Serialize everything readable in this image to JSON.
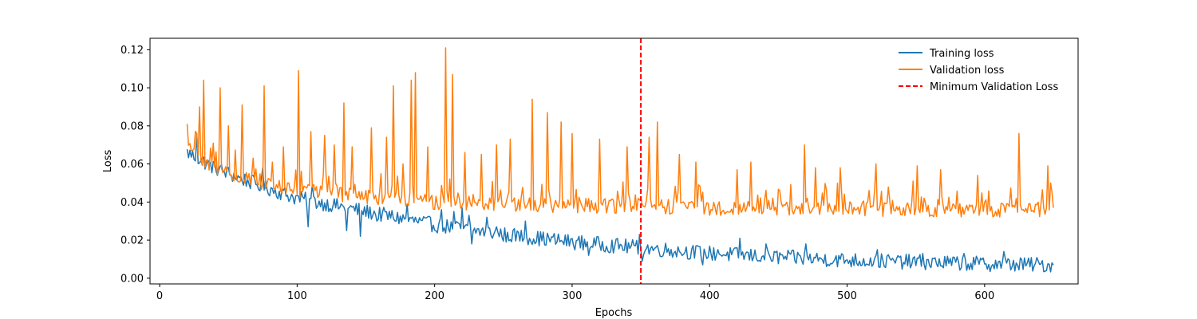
{
  "chart_data": {
    "type": "line",
    "title": "",
    "xlabel": "Epochs",
    "ylabel": "Loss",
    "xlim": [
      -7,
      668
    ],
    "ylim": [
      -0.003,
      0.126
    ],
    "xticks": [
      0,
      100,
      200,
      300,
      400,
      500,
      600
    ],
    "yticks": [
      0.0,
      0.02,
      0.04,
      0.06,
      0.08,
      0.1,
      0.12
    ],
    "ytick_labels": [
      "0.00",
      "0.02",
      "0.04",
      "0.06",
      "0.08",
      "0.10",
      "0.12"
    ],
    "legend_position": "top-right",
    "legend_frame": false,
    "grid": false,
    "epoch_range": [
      20,
      650
    ],
    "series": [
      {
        "name": "Training loss",
        "color": "#1f77b4",
        "style": "solid",
        "trend": [
          [
            20,
            0.066
          ],
          [
            40,
            0.058
          ],
          [
            60,
            0.052
          ],
          [
            80,
            0.047
          ],
          [
            100,
            0.042
          ],
          [
            150,
            0.035
          ],
          [
            200,
            0.028
          ],
          [
            250,
            0.023
          ],
          [
            300,
            0.019
          ],
          [
            350,
            0.016
          ],
          [
            400,
            0.013
          ],
          [
            450,
            0.011
          ],
          [
            500,
            0.0095
          ],
          [
            550,
            0.0085
          ],
          [
            600,
            0.0075
          ],
          [
            650,
            0.007
          ]
        ],
        "noise_amplitude": 0.004,
        "spikes": [
          [
            27,
            0.076
          ],
          [
            75,
            0.058
          ],
          [
            108,
            0.027
          ],
          [
            111,
            0.049
          ],
          [
            136,
            0.025
          ],
          [
            146,
            0.022
          ],
          [
            158,
            0.03
          ],
          [
            180,
            0.039
          ],
          [
            205,
            0.036
          ],
          [
            214,
            0.035
          ],
          [
            220,
            0.037
          ],
          [
            225,
            0.033
          ],
          [
            227,
            0.018
          ],
          [
            238,
            0.032
          ],
          [
            245,
            0.027
          ],
          [
            252,
            0.019
          ],
          [
            266,
            0.03
          ],
          [
            312,
            0.012
          ],
          [
            349,
            0.023
          ],
          [
            351,
            0.009
          ],
          [
            395,
            0.007
          ],
          [
            406,
            0.015
          ],
          [
            422,
            0.021
          ],
          [
            441,
            0.018
          ],
          [
            470,
            0.018
          ],
          [
            522,
            0.015
          ],
          [
            555,
            0.013
          ],
          [
            585,
            0.013
          ],
          [
            614,
            0.014
          ],
          [
            645,
            0.004
          ]
        ]
      },
      {
        "name": "Validation loss",
        "color": "#ff7f0e",
        "style": "solid",
        "trend": [
          [
            20,
            0.068
          ],
          [
            50,
            0.054
          ],
          [
            100,
            0.046
          ],
          [
            150,
            0.043
          ],
          [
            200,
            0.04
          ],
          [
            250,
            0.039
          ],
          [
            300,
            0.038
          ],
          [
            350,
            0.038
          ],
          [
            400,
            0.037
          ],
          [
            450,
            0.037
          ],
          [
            500,
            0.037
          ],
          [
            550,
            0.036
          ],
          [
            600,
            0.036
          ],
          [
            650,
            0.036
          ]
        ],
        "noise_amplitude": 0.004,
        "spikes": [
          [
            20,
            0.081
          ],
          [
            29,
            0.09
          ],
          [
            32,
            0.104
          ],
          [
            44,
            0.1
          ],
          [
            50,
            0.08
          ],
          [
            60,
            0.091
          ],
          [
            68,
            0.063
          ],
          [
            76,
            0.101
          ],
          [
            82,
            0.061
          ],
          [
            90,
            0.069
          ],
          [
            101,
            0.109
          ],
          [
            110,
            0.077
          ],
          [
            120,
            0.075
          ],
          [
            127,
            0.07
          ],
          [
            134,
            0.092
          ],
          [
            140,
            0.069
          ],
          [
            154,
            0.079
          ],
          [
            165,
            0.074
          ],
          [
            170,
            0.101
          ],
          [
            177,
            0.06
          ],
          [
            183,
            0.104
          ],
          [
            186,
            0.108
          ],
          [
            195,
            0.069
          ],
          [
            208,
            0.121
          ],
          [
            213,
            0.107
          ],
          [
            222,
            0.066
          ],
          [
            234,
            0.065
          ],
          [
            245,
            0.07
          ],
          [
            255,
            0.073
          ],
          [
            271,
            0.094
          ],
          [
            282,
            0.087
          ],
          [
            292,
            0.082
          ],
          [
            300,
            0.076
          ],
          [
            320,
            0.073
          ],
          [
            340,
            0.069
          ],
          [
            356,
            0.074
          ],
          [
            362,
            0.082
          ],
          [
            378,
            0.065
          ],
          [
            390,
            0.061
          ],
          [
            420,
            0.057
          ],
          [
            430,
            0.061
          ],
          [
            469,
            0.07
          ],
          [
            477,
            0.058
          ],
          [
            495,
            0.058
          ],
          [
            521,
            0.06
          ],
          [
            551,
            0.059
          ],
          [
            568,
            0.057
          ],
          [
            595,
            0.054
          ],
          [
            625,
            0.076
          ],
          [
            646,
            0.059
          ],
          [
            648,
            0.05
          ]
        ],
        "final_value": 0.037
      },
      {
        "name": "Minimum Validation Loss",
        "color": "#ff0000",
        "style": "dashed",
        "vline_x": 350
      }
    ]
  }
}
